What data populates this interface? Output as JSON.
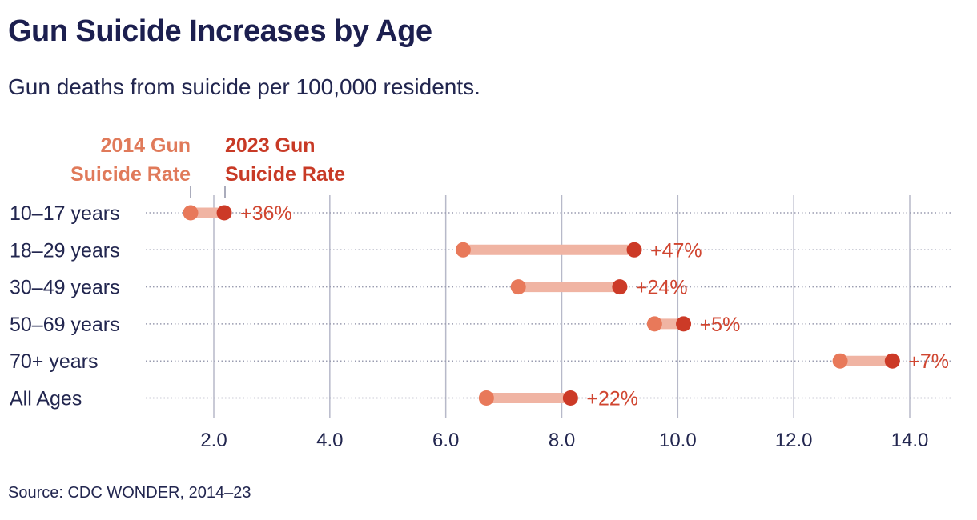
{
  "title": "Gun Suicide Increases by Age",
  "subtitle": "Gun deaths from suicide per 100,000 residents.",
  "source": "Source: CDC WONDER, 2014–23",
  "colors": {
    "rate2014": "#e8795a",
    "rate2023": "#cc3a27",
    "connector": "#f0b4a3",
    "grid": "#b7b9c9",
    "text": "#22264f"
  },
  "chart_data": {
    "type": "dumbbell",
    "title": "Gun Suicide Increases by Age",
    "subtitle": "Gun deaths from suicide per 100,000 residents.",
    "legend": [
      {
        "key": "rate2014",
        "line1": "2014 Gun",
        "line2": "Suicide Rate"
      },
      {
        "key": "rate2023",
        "line1": "2023 Gun",
        "line2": "Suicide Rate"
      }
    ],
    "xlim": [
      0.8,
      14.7
    ],
    "xticks": [
      2,
      4,
      6,
      8,
      10,
      12,
      14
    ],
    "xtick_labels": [
      "2.0",
      "4.0",
      "6.0",
      "8.0",
      "10.0",
      "12.0",
      "14.0"
    ],
    "categories": [
      "10–17 years",
      "18–29 years",
      "30–49 years",
      "50–69 years",
      "70+ years",
      "All Ages"
    ],
    "series": [
      {
        "name": "2014 Gun Suicide Rate",
        "values": [
          1.6,
          6.3,
          7.25,
          9.6,
          12.8,
          6.7
        ]
      },
      {
        "name": "2023 Gun Suicide Rate",
        "values": [
          2.18,
          9.25,
          9.0,
          10.1,
          13.7,
          8.15
        ]
      }
    ],
    "change_labels": [
      "+36%",
      "+47%",
      "+24%",
      "+5%",
      "+7%",
      "+22%"
    ]
  }
}
